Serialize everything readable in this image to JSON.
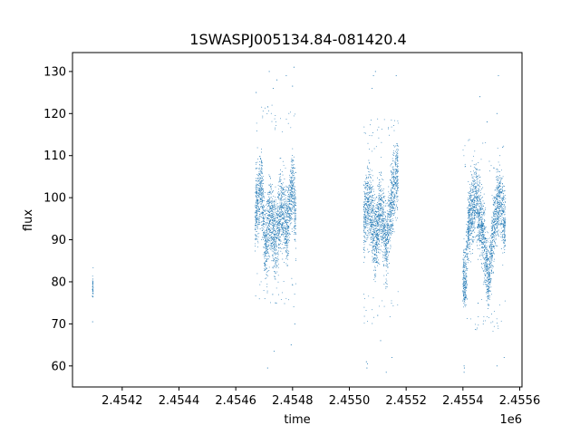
{
  "chart_data": {
    "type": "scatter",
    "title": "1SWASPJ005134.84-081420.4",
    "xlabel": "time",
    "ylabel": "flux",
    "x_offset_label": "1e6",
    "xlim": [
      2454025,
      2455608
    ],
    "ylim": [
      55,
      134.5
    ],
    "x_ticks": [
      2454200,
      2454400,
      2454600,
      2454800,
      2455000,
      2455200,
      2455400,
      2455600
    ],
    "x_tick_labels": [
      "2.4542",
      "2.4544",
      "2.4546",
      "2.4548",
      "2.4550",
      "2.4552",
      "2.4554",
      "2.4556"
    ],
    "y_ticks": [
      60,
      70,
      80,
      90,
      100,
      110,
      120,
      130
    ],
    "y_tick_labels": [
      "60",
      "70",
      "80",
      "90",
      "100",
      "110",
      "120",
      "130"
    ],
    "grid": false,
    "marker_color": "#1f77b4",
    "marker_size": "tiny",
    "observing_seasons": [
      {
        "x_range": [
          2454095,
          2454098
        ],
        "typical_min": 74,
        "typical_max": 83,
        "outliers": [
          [
            2454096,
            70.5
          ]
        ]
      },
      {
        "x_range": [
          2454668,
          2454812
        ],
        "typical_min": 82,
        "typical_max": 114,
        "modulation": [
          [
            2454670,
            97
          ],
          [
            2454690,
            103
          ],
          [
            2454705,
            88
          ],
          [
            2454720,
            96
          ],
          [
            2454740,
            90
          ],
          [
            2454760,
            98
          ],
          [
            2454780,
            92
          ],
          [
            2454800,
            104
          ],
          [
            2454810,
            96
          ]
        ],
        "outliers": [
          [
            2454672,
            125
          ],
          [
            2454718,
            130
          ],
          [
            2454732,
            126
          ],
          [
            2454745,
            128
          ],
          [
            2454778,
            129
          ],
          [
            2454800,
            126.5
          ],
          [
            2454805,
            131
          ],
          [
            2454730,
            77
          ],
          [
            2454735,
            63.5
          ],
          [
            2454712,
            59.5
          ],
          [
            2454740,
            75
          ],
          [
            2454795,
            65
          ],
          [
            2454808,
            70
          ]
        ]
      },
      {
        "x_range": [
          2455050,
          2455172
        ],
        "typical_min": 78,
        "typical_max": 111,
        "modulation": [
          [
            2455052,
            95
          ],
          [
            2455070,
            100
          ],
          [
            2455090,
            90
          ],
          [
            2455110,
            98
          ],
          [
            2455130,
            88
          ],
          [
            2455150,
            100
          ],
          [
            2455170,
            106
          ]
        ],
        "outliers": [
          [
            2455060,
            61
          ],
          [
            2455062,
            59.5
          ],
          [
            2455064,
            60.5
          ],
          [
            2455080,
            126
          ],
          [
            2455085,
            129
          ],
          [
            2455092,
            130
          ],
          [
            2455130,
            58.5
          ],
          [
            2455150,
            62
          ],
          [
            2455165,
            129
          ],
          [
            2455110,
            66
          ],
          [
            2455100,
            72
          ]
        ]
      },
      {
        "x_range": [
          2455400,
          2455550
        ],
        "typical_min": 76,
        "typical_max": 106,
        "modulation": [
          [
            2455410,
            80
          ],
          [
            2455420,
            94
          ],
          [
            2455445,
            100
          ],
          [
            2455470,
            92
          ],
          [
            2455490,
            80
          ],
          [
            2455510,
            94
          ],
          [
            2455530,
            100
          ],
          [
            2455548,
            94
          ]
        ],
        "outliers": [
          [
            2455404,
            58.5
          ],
          [
            2455405,
            59.5
          ],
          [
            2455404,
            60
          ],
          [
            2455460,
            124
          ],
          [
            2455485,
            118
          ],
          [
            2455525,
            129
          ],
          [
            2455520,
            120
          ],
          [
            2455540,
            112
          ],
          [
            2455520,
            60
          ],
          [
            2455545,
            62
          ]
        ]
      }
    ]
  }
}
